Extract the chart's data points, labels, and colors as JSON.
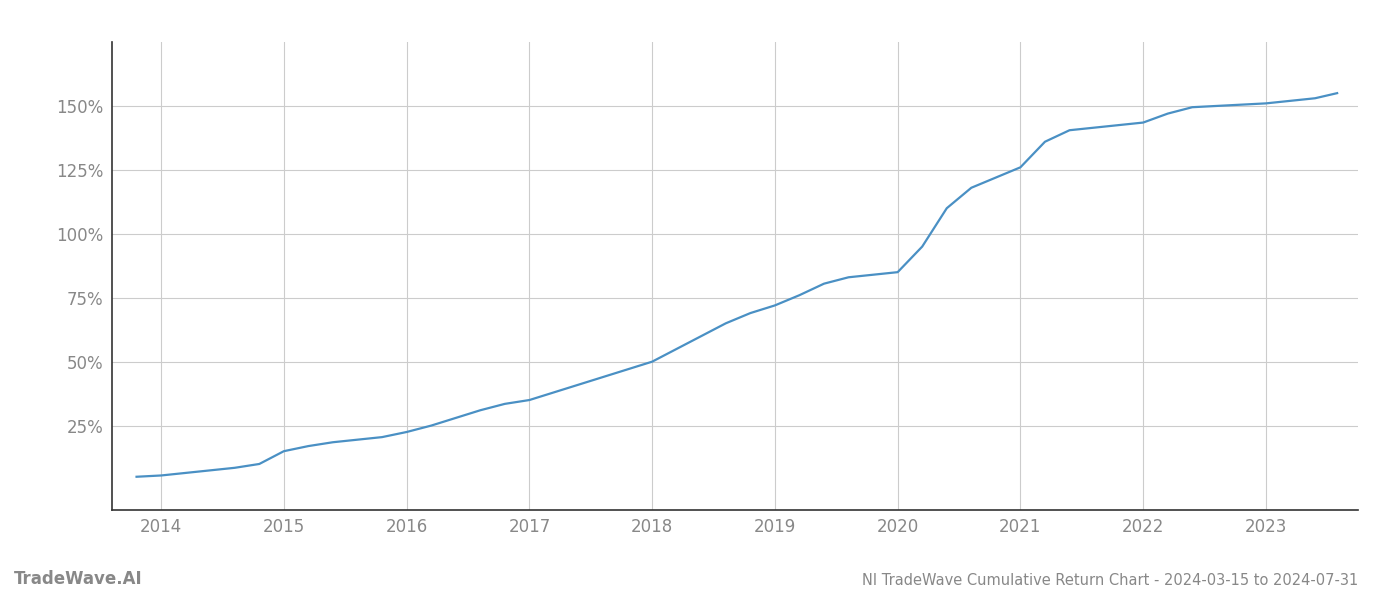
{
  "title": "NI TradeWave Cumulative Return Chart - 2024-03-15 to 2024-07-31",
  "watermark": "TradeWave.AI",
  "line_color": "#4a90c4",
  "background_color": "#ffffff",
  "grid_color": "#cccccc",
  "axis_color": "#888888",
  "spine_color": "#333333",
  "x_years": [
    2013.8,
    2014.0,
    2014.2,
    2014.4,
    2014.6,
    2014.8,
    2015.0,
    2015.2,
    2015.4,
    2015.6,
    2015.8,
    2016.0,
    2016.2,
    2016.4,
    2016.6,
    2016.8,
    2017.0,
    2017.2,
    2017.4,
    2017.6,
    2017.8,
    2018.0,
    2018.2,
    2018.4,
    2018.6,
    2018.8,
    2019.0,
    2019.2,
    2019.4,
    2019.6,
    2019.8,
    2020.0,
    2020.2,
    2020.4,
    2020.6,
    2020.8,
    2021.0,
    2021.2,
    2021.4,
    2021.6,
    2021.8,
    2022.0,
    2022.2,
    2022.4,
    2022.6,
    2022.8,
    2023.0,
    2023.2,
    2023.4,
    2023.58
  ],
  "y_values": [
    5.0,
    5.5,
    6.5,
    7.5,
    8.5,
    10.0,
    15.0,
    17.0,
    18.5,
    19.5,
    20.5,
    22.5,
    25.0,
    28.0,
    31.0,
    33.5,
    35.0,
    38.0,
    41.0,
    44.0,
    47.0,
    50.0,
    55.0,
    60.0,
    65.0,
    69.0,
    72.0,
    76.0,
    80.5,
    83.0,
    84.0,
    85.0,
    95.0,
    110.0,
    118.0,
    122.0,
    126.0,
    136.0,
    140.5,
    141.5,
    142.5,
    143.5,
    147.0,
    149.5,
    150.0,
    150.5,
    151.0,
    152.0,
    153.0,
    155.0
  ],
  "xlim": [
    2013.6,
    2023.75
  ],
  "ylim": [
    -8,
    175
  ],
  "yticks": [
    25,
    50,
    75,
    100,
    125,
    150
  ],
  "xticks": [
    2014,
    2015,
    2016,
    2017,
    2018,
    2019,
    2020,
    2021,
    2022,
    2023
  ],
  "title_fontsize": 10.5,
  "tick_fontsize": 12,
  "watermark_fontsize": 12,
  "line_width": 1.6
}
